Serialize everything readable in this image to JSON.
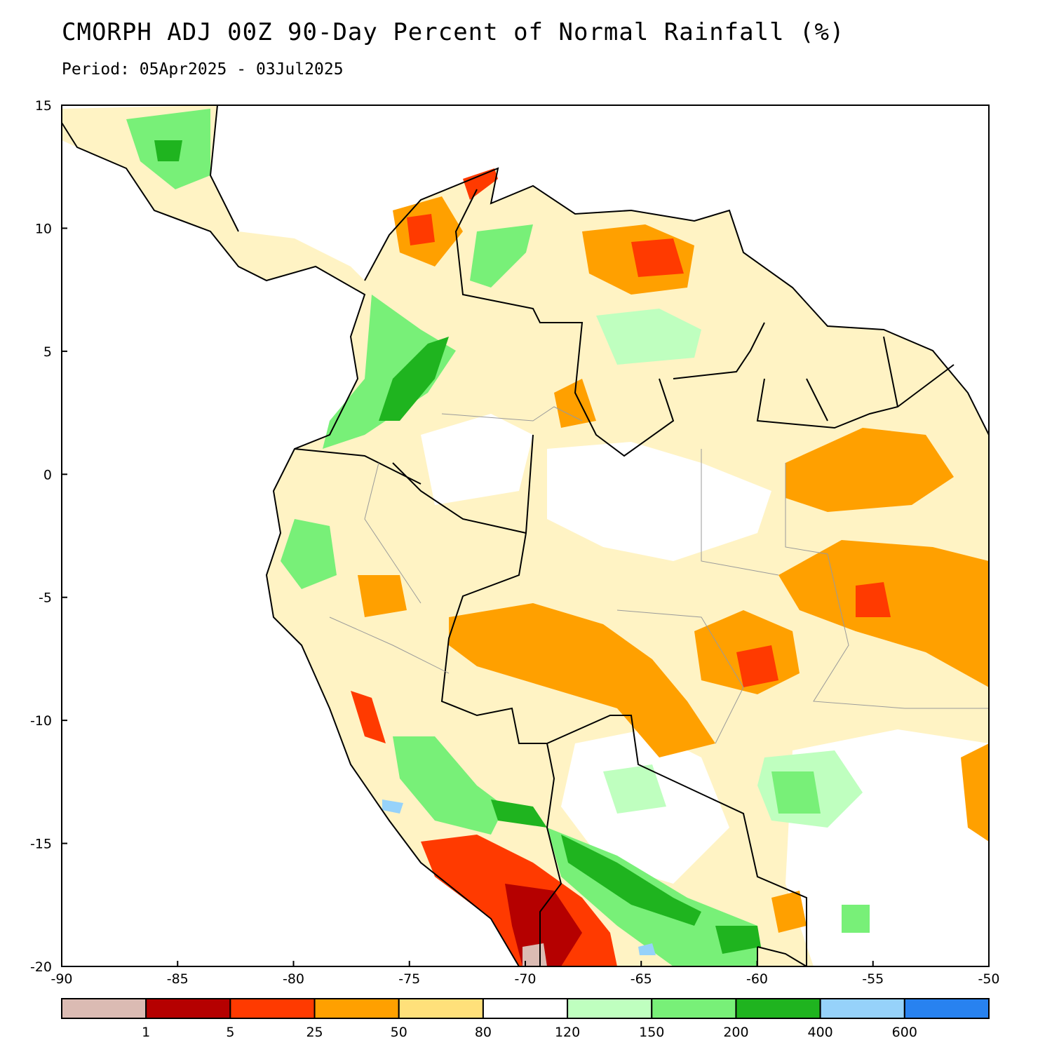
{
  "title": "CMORPH ADJ 00Z 90-Day Percent of Normal Rainfall (%)",
  "subtitle": "Period: 05Apr2025 - 03Jul2025",
  "map": {
    "lon_range": [
      -90,
      -50
    ],
    "lat_range": [
      -20,
      15
    ],
    "x_ticks": [
      {
        "value": -90,
        "label": "-90"
      },
      {
        "value": -85,
        "label": "-85"
      },
      {
        "value": -80,
        "label": "-80"
      },
      {
        "value": -75,
        "label": "-75"
      },
      {
        "value": -70,
        "label": "-70"
      },
      {
        "value": -65,
        "label": "-65"
      },
      {
        "value": -60,
        "label": "-60"
      },
      {
        "value": -55,
        "label": "-55"
      },
      {
        "value": -50,
        "label": "-50"
      }
    ],
    "y_ticks": [
      {
        "value": 15,
        "label": "15"
      },
      {
        "value": 10,
        "label": "10"
      },
      {
        "value": 5,
        "label": "5"
      },
      {
        "value": 0,
        "label": "0"
      },
      {
        "value": -5,
        "label": "-5"
      },
      {
        "value": -10,
        "label": "-10"
      },
      {
        "value": -15,
        "label": "-15"
      },
      {
        "value": -20,
        "label": "-20"
      }
    ]
  },
  "colorbar": {
    "colors": [
      "#dbbbb3",
      "#b50000",
      "#ff3a00",
      "#ffa000",
      "#ffe07a",
      "#ffffff",
      "#bfffbf",
      "#78f078",
      "#1fb41f",
      "#96d2fa",
      "#2882f0"
    ],
    "labels": [
      "1",
      "5",
      "25",
      "50",
      "80",
      "120",
      "150",
      "200",
      "400",
      "600"
    ]
  }
}
